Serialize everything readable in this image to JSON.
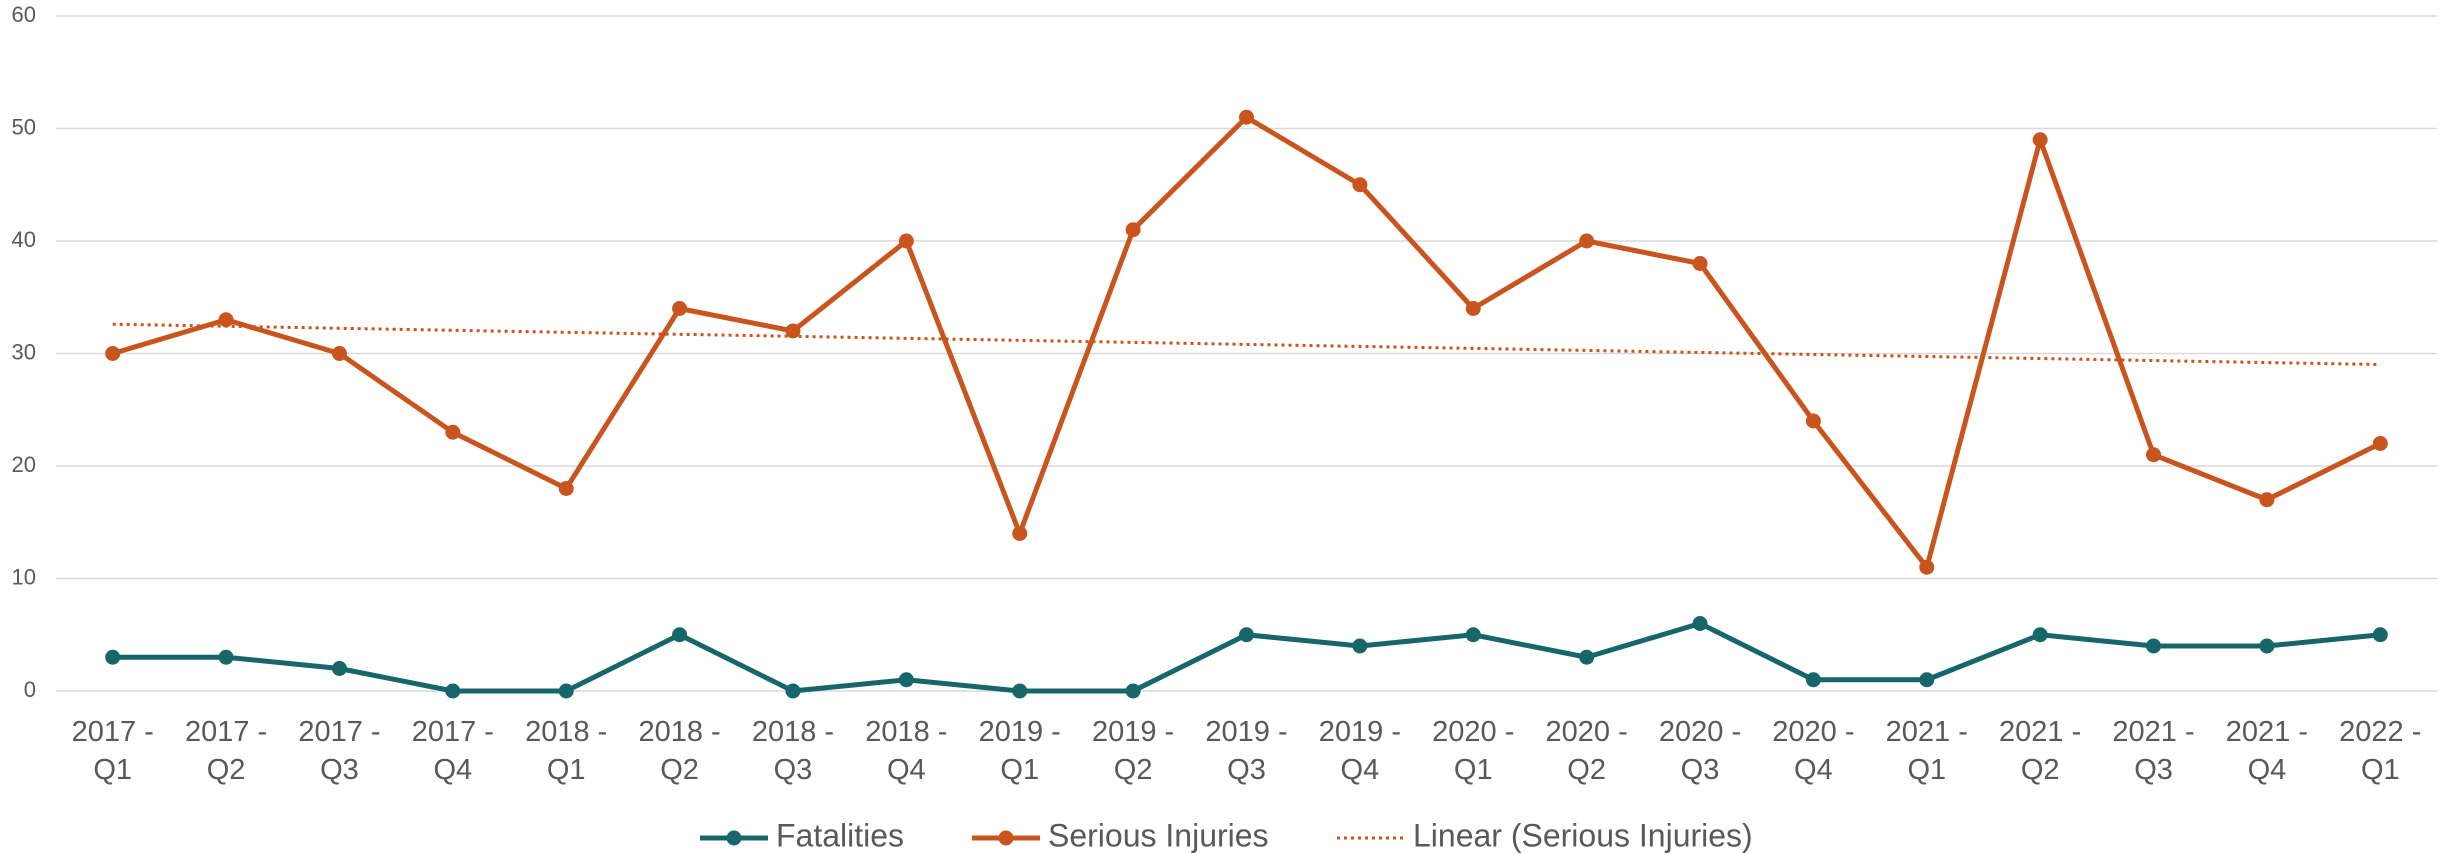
{
  "chart_data": {
    "type": "line",
    "categories": [
      "2017 - Q1",
      "2017 - Q2",
      "2017 - Q3",
      "2017 - Q4",
      "2018 - Q1",
      "2018 - Q2",
      "2018 - Q3",
      "2018 - Q4",
      "2019 - Q1",
      "2019 - Q2",
      "2019 - Q3",
      "2019 - Q4",
      "2020 - Q1",
      "2020 - Q2",
      "2020 - Q3",
      "2020 - Q4",
      "2021 - Q1",
      "2021 - Q2",
      "2021 - Q3",
      "2021 - Q4",
      "2022 - Q1"
    ],
    "series": [
      {
        "name": "Fatalities",
        "color": "#17666a",
        "values": [
          3,
          3,
          2,
          0,
          0,
          5,
          0,
          1,
          0,
          0,
          5,
          4,
          5,
          3,
          6,
          1,
          1,
          5,
          4,
          4,
          5
        ]
      },
      {
        "name": "Serious Injuries",
        "color": "#c9541e",
        "values": [
          30,
          33,
          30,
          23,
          18,
          34,
          32,
          40,
          14,
          41,
          51,
          45,
          34,
          40,
          38,
          24,
          11,
          49,
          21,
          17,
          22
        ]
      }
    ],
    "trendline": {
      "name": "Linear (Serious Injuries)",
      "series": 1,
      "kind": "linear",
      "color": "#c9541e",
      "style": "dotted"
    },
    "ylim": [
      0,
      60
    ],
    "yticks": [
      0,
      10,
      20,
      30,
      40,
      50,
      60
    ],
    "grid": true,
    "legend": "bottom"
  }
}
